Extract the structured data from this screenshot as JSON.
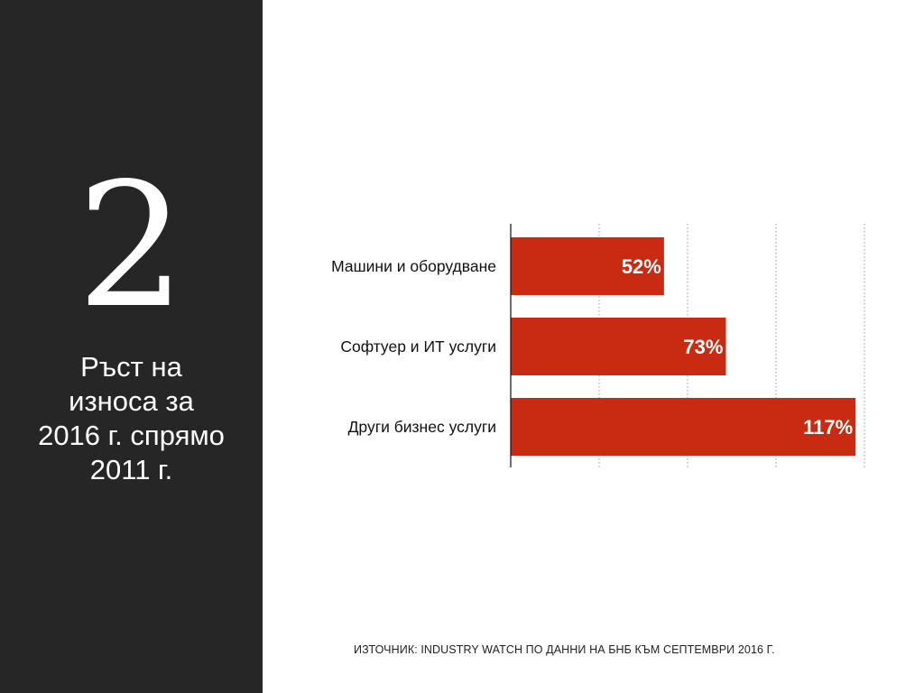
{
  "sidebar": {
    "number": "2",
    "subtitle_lines": [
      "Ръст на",
      "износа за",
      "2016 г. спрямо",
      "2011 г."
    ]
  },
  "colors": {
    "sidebar_bg": "#262626",
    "bar": "#c92a12",
    "bar_label": "#ffffff"
  },
  "chart_data": {
    "type": "bar",
    "orientation": "horizontal",
    "categories": [
      "Машини и оборудване",
      "Софтуер и ИТ услуги",
      "Други бизнес услуги"
    ],
    "values": [
      52,
      73,
      117
    ],
    "labels": [
      "52%",
      "73%",
      "117%"
    ],
    "xlim": [
      0,
      120
    ],
    "x_gridlines": [
      30,
      60,
      90,
      120
    ],
    "grid": "vertical dotted",
    "legend": "none",
    "title": "",
    "xlabel": "",
    "ylabel": ""
  },
  "source": "ИЗТОЧНИК: INDUSTRY WATCH ПО ДАННИ НА БНБ КЪМ СЕПТЕМВРИ 2016 Г."
}
